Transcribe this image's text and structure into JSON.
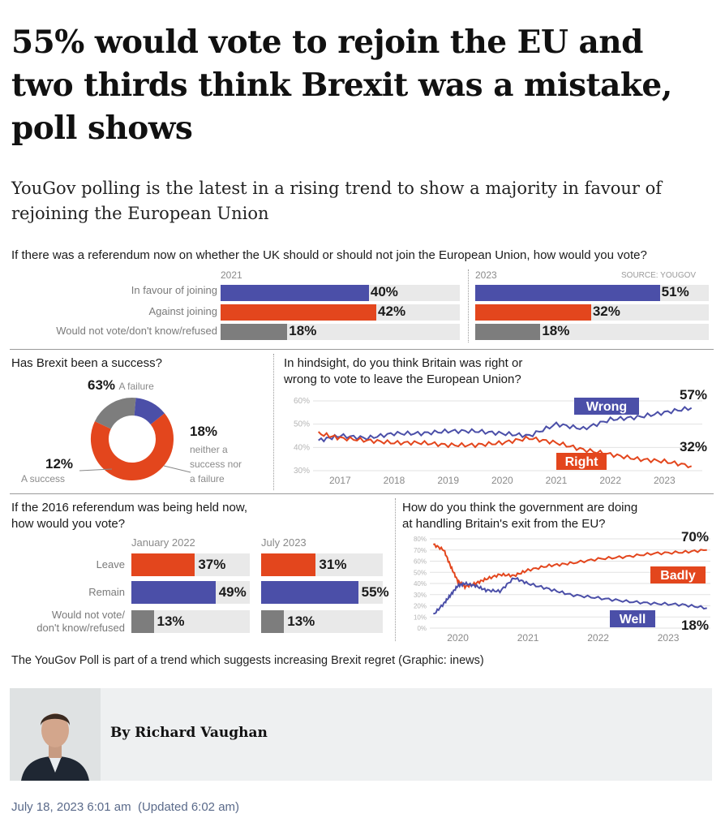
{
  "article": {
    "headline": "55% would vote to rejoin the EU and two thirds think Brexit was a mistake, poll shows",
    "standfirst": "YouGov polling is the latest in a rising trend to show a majority in favour of rejoining the European Union",
    "caption": "The YouGov Poll is part of a trend which suggests increasing Brexit regret (Graphic: inews)",
    "author": "By Richard Vaughan",
    "date": "July 18, 2023 6:01 am",
    "updated": "(Updated 6:02 am)"
  },
  "colors": {
    "blue": "#4b4fa8",
    "orange": "#e3461d",
    "grey": "#7d7d7d",
    "track": "#e9e9e9"
  },
  "chart_data": [
    {
      "type": "bar",
      "title": "If there was a referendum now on whether the UK should or should not join the European Union, how would you vote?",
      "source": "SOURCE: YOUGOV",
      "categories": [
        "In favour of joining",
        "Against joining",
        "Would not vote/don't know/refused"
      ],
      "series": [
        {
          "name": "2021",
          "values": [
            40,
            42,
            18
          ],
          "labels": [
            "40%",
            "42%",
            "18%"
          ]
        },
        {
          "name": "2023",
          "values": [
            51,
            32,
            18
          ],
          "labels": [
            "51%",
            "32%",
            "18%"
          ]
        }
      ],
      "xlim": [
        0,
        100
      ]
    },
    {
      "type": "pie",
      "title": "Has Brexit been a success?",
      "slices": [
        {
          "label": "A failure",
          "value": 63,
          "text": "63%"
        },
        {
          "label": "A success",
          "value": 12,
          "text": "12%"
        },
        {
          "label": "neither a success nor a failure",
          "value": 18,
          "text": "18%"
        }
      ],
      "label_lines": [
        "neither a",
        "success nor",
        "a failure"
      ]
    },
    {
      "type": "line",
      "title_lines": [
        "In hindsight, do you think Britain was right or",
        "wrong to vote to leave the European Union?"
      ],
      "x_ticks": [
        "2017",
        "2018",
        "2019",
        "2020",
        "2021",
        "2022",
        "2023"
      ],
      "y_ticks": [
        "60%",
        "50%",
        "40%",
        "30%"
      ],
      "ylim": [
        30,
        60
      ],
      "xlim": [
        2016.5,
        2023.7
      ],
      "series": [
        {
          "name": "Wrong",
          "end_label": "57%",
          "x": [
            2016.6,
            2017.0,
            2017.5,
            2018.0,
            2018.5,
            2019.0,
            2019.5,
            2020.0,
            2020.5,
            2021.0,
            2021.5,
            2022.0,
            2022.5,
            2023.0,
            2023.5
          ],
          "y": [
            43,
            45,
            44,
            46,
            46,
            47,
            47,
            46,
            45,
            50,
            48,
            52,
            53,
            55,
            57
          ]
        },
        {
          "name": "Right",
          "end_label": "32%",
          "x": [
            2016.6,
            2017.0,
            2017.5,
            2018.0,
            2018.5,
            2019.0,
            2019.5,
            2020.0,
            2020.5,
            2021.0,
            2021.5,
            2022.0,
            2022.5,
            2023.0,
            2023.5
          ],
          "y": [
            46,
            44,
            43,
            42,
            42,
            41,
            41,
            42,
            44,
            42,
            39,
            37,
            35,
            34,
            32
          ]
        }
      ]
    },
    {
      "type": "bar",
      "title_lines": [
        "If the 2016 referendum was being held now,",
        "how would you vote?"
      ],
      "categories": [
        "Leave",
        "Remain",
        "Would not vote/ don't know/refused"
      ],
      "category_lines": [
        [
          "Leave"
        ],
        [
          "Remain"
        ],
        [
          "Would not vote/",
          "don't know/refused"
        ]
      ],
      "series": [
        {
          "name": "January 2022",
          "values": [
            37,
            49,
            13
          ],
          "labels": [
            "37%",
            "49%",
            "13%"
          ]
        },
        {
          "name": "July 2023",
          "values": [
            31,
            55,
            13
          ],
          "labels": [
            "31%",
            "55%",
            "13%"
          ]
        }
      ],
      "xlim": [
        0,
        100
      ]
    },
    {
      "type": "line",
      "title_lines": [
        "How do you think the government are doing",
        "at handling Britain's exit from the EU?"
      ],
      "x_ticks": [
        "2020",
        "2021",
        "2022",
        "2023"
      ],
      "y_ticks": [
        "80%",
        "70%",
        "60%",
        "50%",
        "40%",
        "30%",
        "20%",
        "10%",
        "0%"
      ],
      "ylim": [
        0,
        80
      ],
      "xlim": [
        2019.6,
        2023.6
      ],
      "series": [
        {
          "name": "Badly",
          "end_label": "70%",
          "x": [
            2019.65,
            2019.8,
            2019.9,
            2020.0,
            2020.1,
            2020.25,
            2020.4,
            2020.6,
            2020.8,
            2021.0,
            2021.3,
            2021.6,
            2022.0,
            2022.4,
            2022.8,
            2023.2,
            2023.55
          ],
          "y": [
            75,
            70,
            55,
            42,
            37,
            40,
            44,
            48,
            47,
            52,
            56,
            58,
            62,
            64,
            67,
            68,
            70
          ]
        },
        {
          "name": "Well",
          "end_label": "18%",
          "x": [
            2019.65,
            2019.8,
            2019.9,
            2020.0,
            2020.1,
            2020.25,
            2020.4,
            2020.6,
            2020.8,
            2021.0,
            2021.3,
            2021.6,
            2022.0,
            2022.4,
            2022.8,
            2023.2,
            2023.55
          ],
          "y": [
            12,
            22,
            30,
            38,
            40,
            38,
            34,
            33,
            45,
            40,
            35,
            30,
            27,
            24,
            22,
            21,
            18
          ]
        }
      ]
    }
  ]
}
